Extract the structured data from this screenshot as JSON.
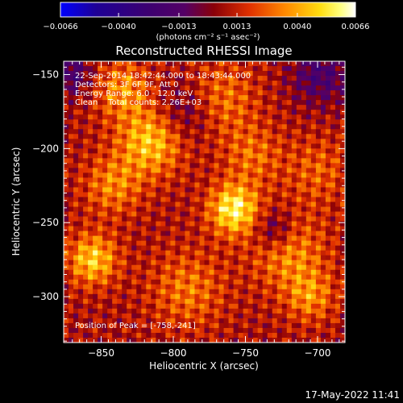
{
  "colorbar": {
    "ticks": [
      "-0.0066",
      "-0.0040",
      "-0.0013",
      "0.0013",
      "0.0040",
      "0.0066"
    ],
    "tick_values": [
      -0.0066,
      -0.004,
      -0.0013,
      0.0013,
      0.004,
      0.0066
    ],
    "range": [
      -0.0066,
      0.0066
    ],
    "unit_label": "(photons cm⁻² s⁻¹ asec⁻²)"
  },
  "chart_data": {
    "type": "heatmap",
    "title": "Reconstructed RHESSI Image",
    "xlabel": "Heliocentric X (arcsec)",
    "ylabel": "Heliocentric Y (arcsec)",
    "xlim": [
      -876,
      -681
    ],
    "ylim": [
      -331,
      -141
    ],
    "x_ticks": [
      -850,
      -800,
      -750,
      -700
    ],
    "x_tick_labels": [
      "−850",
      "−800",
      "−750",
      "−700"
    ],
    "y_ticks": [
      -150,
      -200,
      -250,
      -300
    ],
    "y_tick_labels": [
      "−150",
      "−200",
      "−250",
      "−300"
    ],
    "colormap": "rhessi-purple-red-yellow-white",
    "info_lines": [
      "22-Sep-2014 18:42:44.000 to 18:43:44.000",
      "Detectors: 3F 6F 9F, Att 0",
      "Energy Range: 6.0 - 12.0 keV",
      "Clean    Total counts: 2.26E+03"
    ],
    "peak_label": "Position of Peak = [-758,-241]",
    "peak": [
      -758,
      -241
    ]
  },
  "footer": {
    "date": "17-May-2022 11:41"
  }
}
